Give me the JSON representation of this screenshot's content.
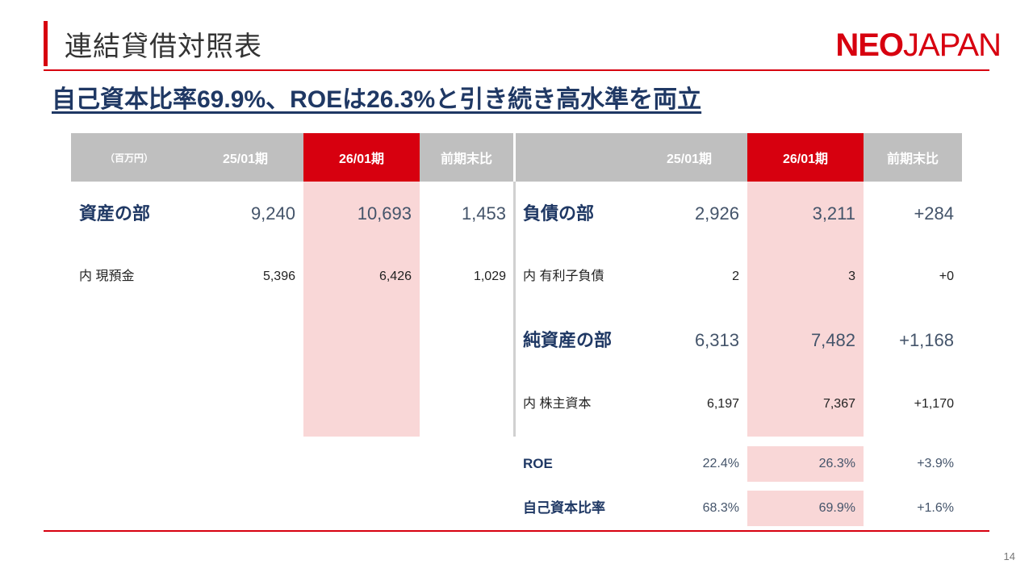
{
  "header": {
    "title": "連結貸借対照表",
    "logo_bold": "NEO",
    "logo_thin": "JAPAN",
    "subtitle": "自己資本比率69.9%、ROEは26.3%と引き続き高水準を両立"
  },
  "table": {
    "unit": "（百万円）",
    "col_prev": "25/01期",
    "col_curr": "26/01期",
    "col_diff": "前期末比",
    "left": [
      {
        "label": "資産の部",
        "prev": "9,240",
        "curr": "10,693",
        "diff": "1,453"
      },
      {
        "label": "内 現預金",
        "prev": "5,396",
        "curr": "6,426",
        "diff": "1,029"
      }
    ],
    "right": [
      {
        "label": "負債の部",
        "prev": "2,926",
        "curr": "3,211",
        "diff": "+284"
      },
      {
        "label": "内 有利子負債",
        "prev": "2",
        "curr": "3",
        "diff": "+0"
      },
      {
        "label": "純資産の部",
        "prev": "6,313",
        "curr": "7,482",
        "diff": "+1,168"
      },
      {
        "label": "内 株主資本",
        "prev": "6,197",
        "curr": "7,367",
        "diff": "+1,170"
      }
    ],
    "kpis": [
      {
        "label": "ROE",
        "prev": "22.4%",
        "curr": "26.3%",
        "diff": "+3.9%"
      },
      {
        "label": "自己資本比率",
        "prev": "68.3%",
        "curr": "69.9%",
        "diff": "+1.6%"
      }
    ]
  },
  "footer": {
    "page": "14"
  },
  "colors": {
    "accent": "#d7000f",
    "navy": "#1f3864",
    "highlight": "#f9d7d7",
    "header_gray": "#bfbfbf"
  }
}
